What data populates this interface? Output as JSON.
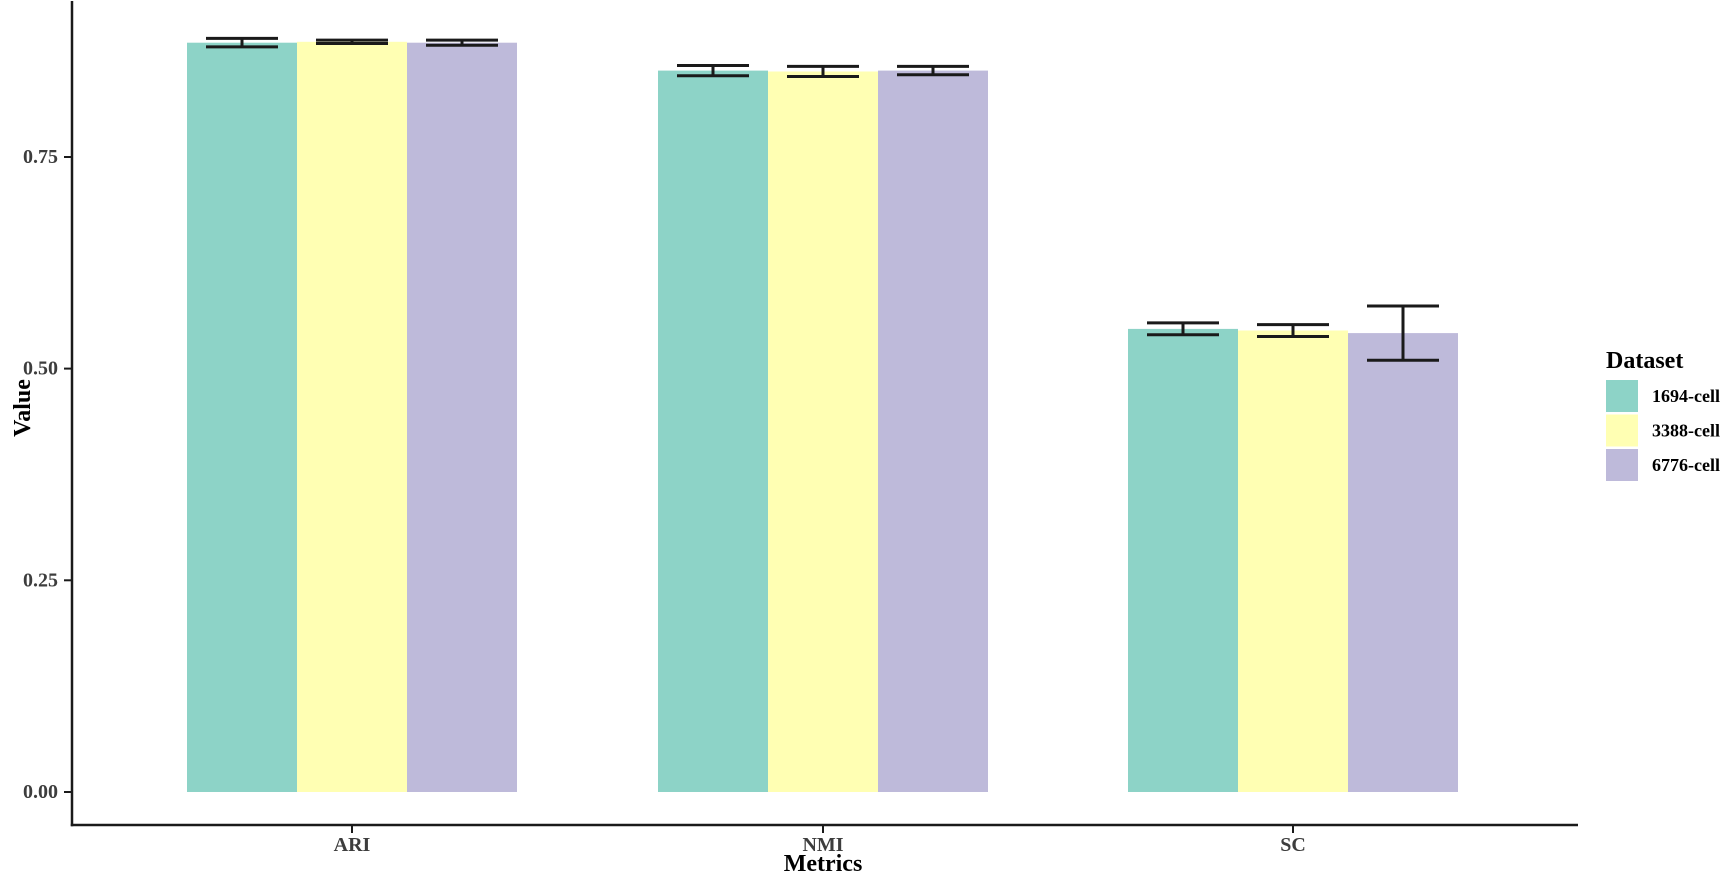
{
  "chart_data": {
    "type": "bar",
    "title": "",
    "categories": [
      "ARI",
      "NMI",
      "SC"
    ],
    "series": [
      {
        "name": "1694-cell",
        "color": "#8DD3C7",
        "values": [
          0.885,
          0.852,
          0.547
        ],
        "errors": [
          0.005,
          0.006,
          0.007
        ]
      },
      {
        "name": "3388-cell",
        "color": "#FFFFB3",
        "values": [
          0.886,
          0.851,
          0.545
        ],
        "errors": [
          0.002,
          0.006,
          0.007
        ]
      },
      {
        "name": "6776-cell",
        "color": "#BEBADA",
        "values": [
          0.885,
          0.852,
          0.542
        ],
        "errors": [
          0.003,
          0.005,
          0.032
        ]
      }
    ],
    "xlabel": "Metrics",
    "ylabel": "Value",
    "yticks": {
      "values": [
        0,
        0.25,
        0.5,
        0.75
      ],
      "labels": [
        "0.00",
        "0.25",
        "0.50",
        "0.75"
      ]
    },
    "ylim": [
      0,
      0.935
    ],
    "grid": false,
    "legend": {
      "title": "Dataset",
      "position": "right",
      "entries": [
        "1694-cell",
        "3388-cell",
        "6776-cell"
      ]
    },
    "colors": {
      "axis_line": "#1a1a1a",
      "error_bar": "#1a1a1a",
      "tick_label": "#3d3d3d",
      "axis_title": "#000000"
    }
  }
}
